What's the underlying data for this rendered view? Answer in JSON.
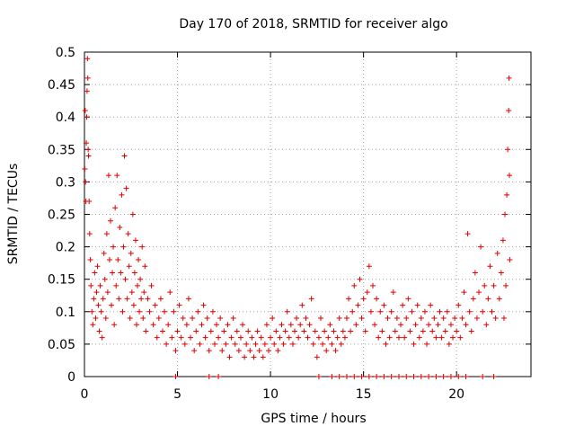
{
  "chart_data": {
    "type": "scatter",
    "title": "Day 170 of 2018, SRMTID for receiver algo",
    "xlabel": "GPS time / hours",
    "ylabel": "SRMTID / TECUs",
    "xlim": [
      0,
      24
    ],
    "ylim": [
      0,
      0.5
    ],
    "xticks": [
      0,
      5,
      10,
      15,
      20
    ],
    "yticks": [
      0,
      0.05,
      0.1,
      0.15,
      0.2,
      0.25,
      0.3,
      0.35,
      0.4,
      0.45,
      0.5
    ],
    "xtick_labels": [
      "0",
      "5",
      "10",
      "15",
      "20"
    ],
    "ytick_labels": [
      "0",
      "0.05",
      "0.1",
      "0.15",
      "0.2",
      "0.25",
      "0.3",
      "0.35",
      "0.4",
      "0.45",
      "0.5"
    ],
    "grid": true,
    "marker": "+",
    "color": "#e00000",
    "series": [
      {
        "name": "SRMTID",
        "points": [
          [
            0.02,
            0.32
          ],
          [
            0.04,
            0.41
          ],
          [
            0.06,
            0.3
          ],
          [
            0.08,
            0.27
          ],
          [
            0.1,
            0.36
          ],
          [
            0.12,
            0.4
          ],
          [
            0.14,
            0.44
          ],
          [
            0.16,
            0.49
          ],
          [
            0.18,
            0.46
          ],
          [
            0.2,
            0.35
          ],
          [
            0.22,
            0.34
          ],
          [
            0.25,
            0.27
          ],
          [
            0.28,
            0.22
          ],
          [
            0.32,
            0.18
          ],
          [
            0.35,
            0.14
          ],
          [
            0.4,
            0.1
          ],
          [
            0.45,
            0.08
          ],
          [
            0.5,
            0.12
          ],
          [
            0.55,
            0.16
          ],
          [
            0.6,
            0.09
          ],
          [
            0.65,
            0.13
          ],
          [
            0.7,
            0.17
          ],
          [
            0.75,
            0.11
          ],
          [
            0.8,
            0.07
          ],
          [
            0.85,
            0.14
          ],
          [
            0.9,
            0.1
          ],
          [
            0.95,
            0.06
          ],
          [
            1.0,
            0.12
          ],
          [
            1.05,
            0.19
          ],
          [
            1.1,
            0.15
          ],
          [
            1.15,
            0.09
          ],
          [
            1.2,
            0.22
          ],
          [
            1.25,
            0.13
          ],
          [
            1.3,
            0.31
          ],
          [
            1.35,
            0.18
          ],
          [
            1.4,
            0.24
          ],
          [
            1.45,
            0.11
          ],
          [
            1.5,
            0.16
          ],
          [
            1.55,
            0.2
          ],
          [
            1.6,
            0.08
          ],
          [
            1.65,
            0.26
          ],
          [
            1.7,
            0.14
          ],
          [
            1.75,
            0.31
          ],
          [
            1.8,
            0.18
          ],
          [
            1.85,
            0.12
          ],
          [
            1.9,
            0.23
          ],
          [
            1.95,
            0.16
          ],
          [
            2.0,
            0.28
          ],
          [
            2.05,
            0.1
          ],
          [
            2.1,
            0.2
          ],
          [
            2.15,
            0.34
          ],
          [
            2.2,
            0.15
          ],
          [
            2.25,
            0.29
          ],
          [
            2.3,
            0.12
          ],
          [
            2.35,
            0.22
          ],
          [
            2.4,
            0.17
          ],
          [
            2.45,
            0.09
          ],
          [
            2.5,
            0.19
          ],
          [
            2.55,
            0.13
          ],
          [
            2.6,
            0.25
          ],
          [
            2.65,
            0.11
          ],
          [
            2.7,
            0.16
          ],
          [
            2.75,
            0.21
          ],
          [
            2.8,
            0.08
          ],
          [
            2.85,
            0.14
          ],
          [
            2.9,
            0.18
          ],
          [
            2.95,
            0.1
          ],
          [
            3.0,
            0.15
          ],
          [
            3.05,
            0.12
          ],
          [
            3.1,
            0.2
          ],
          [
            3.15,
            0.09
          ],
          [
            3.2,
            0.13
          ],
          [
            3.25,
            0.17
          ],
          [
            3.3,
            0.07
          ],
          [
            3.4,
            0.12
          ],
          [
            3.5,
            0.1
          ],
          [
            3.6,
            0.14
          ],
          [
            3.7,
            0.08
          ],
          [
            3.8,
            0.11
          ],
          [
            3.9,
            0.06
          ],
          [
            4.0,
            0.09
          ],
          [
            4.1,
            0.12
          ],
          [
            4.2,
            0.07
          ],
          [
            4.3,
            0.1
          ],
          [
            4.4,
            0.05
          ],
          [
            4.5,
            0.08
          ],
          [
            4.6,
            0.13
          ],
          [
            4.7,
            0.06
          ],
          [
            4.8,
            0.1
          ],
          [
            4.9,
            0.04
          ],
          [
            5.0,
            0.07
          ],
          [
            5.1,
            0.11
          ],
          [
            5.2,
            0.06
          ],
          [
            5.3,
            0.09
          ],
          [
            5.4,
            0.05
          ],
          [
            5.5,
            0.08
          ],
          [
            5.6,
            0.12
          ],
          [
            5.7,
            0.06
          ],
          [
            5.8,
            0.09
          ],
          [
            5.9,
            0.04
          ],
          [
            6.0,
            0.07
          ],
          [
            6.1,
            0.1
          ],
          [
            6.2,
            0.05
          ],
          [
            6.3,
            0.08
          ],
          [
            6.4,
            0.11
          ],
          [
            6.5,
            0.06
          ],
          [
            6.6,
            0.09
          ],
          [
            6.7,
            0.04
          ],
          [
            6.8,
            0.07
          ],
          [
            6.9,
            0.1
          ],
          [
            7.0,
            0.05
          ],
          [
            7.1,
            0.08
          ],
          [
            7.2,
            0.06
          ],
          [
            7.3,
            0.09
          ],
          [
            7.4,
            0.04
          ],
          [
            7.5,
            0.07
          ],
          [
            7.6,
            0.05
          ],
          [
            7.7,
            0.08
          ],
          [
            7.8,
            0.03
          ],
          [
            7.9,
            0.06
          ],
          [
            8.0,
            0.09
          ],
          [
            8.1,
            0.05
          ],
          [
            8.2,
            0.07
          ],
          [
            8.3,
            0.04
          ],
          [
            8.4,
            0.06
          ],
          [
            8.5,
            0.08
          ],
          [
            8.6,
            0.03
          ],
          [
            8.7,
            0.05
          ],
          [
            8.8,
            0.07
          ],
          [
            8.9,
            0.04
          ],
          [
            9.0,
            0.06
          ],
          [
            9.1,
            0.03
          ],
          [
            9.2,
            0.05
          ],
          [
            9.3,
            0.07
          ],
          [
            9.4,
            0.04
          ],
          [
            9.5,
            0.06
          ],
          [
            9.6,
            0.03
          ],
          [
            9.7,
            0.05
          ],
          [
            9.8,
            0.08
          ],
          [
            9.9,
            0.04
          ],
          [
            10.0,
            0.06
          ],
          [
            10.1,
            0.09
          ],
          [
            10.2,
            0.05
          ],
          [
            10.3,
            0.07
          ],
          [
            10.4,
            0.04
          ],
          [
            10.5,
            0.06
          ],
          [
            10.6,
            0.08
          ],
          [
            10.7,
            0.05
          ],
          [
            10.8,
            0.07
          ],
          [
            10.9,
            0.1
          ],
          [
            11.0,
            0.06
          ],
          [
            11.1,
            0.08
          ],
          [
            11.2,
            0.05
          ],
          [
            11.3,
            0.07
          ],
          [
            11.4,
            0.09
          ],
          [
            11.5,
            0.06
          ],
          [
            11.6,
            0.08
          ],
          [
            11.7,
            0.11
          ],
          [
            11.8,
            0.07
          ],
          [
            11.9,
            0.09
          ],
          [
            12.0,
            0.06
          ],
          [
            12.1,
            0.08
          ],
          [
            12.2,
            0.12
          ],
          [
            12.3,
            0.05
          ],
          [
            12.4,
            0.07
          ],
          [
            12.5,
            0.03
          ],
          [
            12.6,
            0.06
          ],
          [
            12.7,
            0.09
          ],
          [
            12.8,
            0.05
          ],
          [
            12.9,
            0.07
          ],
          [
            13.0,
            0.04
          ],
          [
            13.1,
            0.06
          ],
          [
            13.2,
            0.08
          ],
          [
            13.3,
            0.05
          ],
          [
            13.4,
            0.07
          ],
          [
            13.5,
            0.04
          ],
          [
            13.6,
            0.06
          ],
          [
            13.7,
            0.09
          ],
          [
            13.8,
            0.05
          ],
          [
            13.9,
            0.07
          ],
          [
            14.0,
            0.06
          ],
          [
            14.1,
            0.09
          ],
          [
            14.2,
            0.12
          ],
          [
            14.3,
            0.07
          ],
          [
            14.4,
            0.1
          ],
          [
            14.5,
            0.14
          ],
          [
            14.6,
            0.08
          ],
          [
            14.7,
            0.11
          ],
          [
            14.8,
            0.15
          ],
          [
            14.9,
            0.09
          ],
          [
            15.0,
            0.12
          ],
          [
            15.1,
            0.07
          ],
          [
            15.2,
            0.13
          ],
          [
            15.3,
            0.17
          ],
          [
            15.4,
            0.1
          ],
          [
            15.5,
            0.14
          ],
          [
            15.6,
            0.08
          ],
          [
            15.7,
            0.12
          ],
          [
            15.8,
            0.06
          ],
          [
            15.9,
            0.1
          ],
          [
            16.0,
            0.07
          ],
          [
            16.1,
            0.11
          ],
          [
            16.2,
            0.05
          ],
          [
            16.3,
            0.09
          ],
          [
            16.4,
            0.06
          ],
          [
            16.5,
            0.1
          ],
          [
            16.6,
            0.13
          ],
          [
            16.7,
            0.07
          ],
          [
            16.8,
            0.09
          ],
          [
            16.9,
            0.06
          ],
          [
            17.0,
            0.08
          ],
          [
            17.1,
            0.11
          ],
          [
            17.2,
            0.06
          ],
          [
            17.3,
            0.09
          ],
          [
            17.4,
            0.12
          ],
          [
            17.5,
            0.07
          ],
          [
            17.6,
            0.1
          ],
          [
            17.7,
            0.05
          ],
          [
            17.8,
            0.08
          ],
          [
            17.9,
            0.11
          ],
          [
            18.0,
            0.06
          ],
          [
            18.1,
            0.09
          ],
          [
            18.2,
            0.07
          ],
          [
            18.3,
            0.1
          ],
          [
            18.4,
            0.05
          ],
          [
            18.5,
            0.08
          ],
          [
            18.6,
            0.11
          ],
          [
            18.7,
            0.07
          ],
          [
            18.8,
            0.09
          ],
          [
            18.9,
            0.06
          ],
          [
            19.0,
            0.08
          ],
          [
            19.1,
            0.1
          ],
          [
            19.2,
            0.06
          ],
          [
            19.3,
            0.09
          ],
          [
            19.4,
            0.07
          ],
          [
            19.5,
            0.1
          ],
          [
            19.6,
            0.05
          ],
          [
            19.7,
            0.08
          ],
          [
            19.8,
            0.06
          ],
          [
            19.9,
            0.09
          ],
          [
            20.0,
            0.07
          ],
          [
            20.1,
            0.11
          ],
          [
            20.2,
            0.06
          ],
          [
            20.3,
            0.09
          ],
          [
            20.4,
            0.13
          ],
          [
            20.5,
            0.08
          ],
          [
            20.6,
            0.22
          ],
          [
            20.7,
            0.1
          ],
          [
            20.8,
            0.07
          ],
          [
            20.9,
            0.12
          ],
          [
            21.0,
            0.16
          ],
          [
            21.1,
            0.09
          ],
          [
            21.2,
            0.13
          ],
          [
            21.3,
            0.2
          ],
          [
            21.4,
            0.1
          ],
          [
            21.5,
            0.14
          ],
          [
            21.6,
            0.08
          ],
          [
            21.7,
            0.12
          ],
          [
            21.8,
            0.17
          ],
          [
            21.9,
            0.1
          ],
          [
            22.0,
            0.14
          ],
          [
            22.1,
            0.09
          ],
          [
            22.2,
            0.19
          ],
          [
            22.3,
            0.12
          ],
          [
            22.4,
            0.16
          ],
          [
            22.5,
            0.21
          ],
          [
            22.55,
            0.09
          ],
          [
            22.6,
            0.25
          ],
          [
            22.65,
            0.14
          ],
          [
            22.7,
            0.28
          ],
          [
            22.75,
            0.35
          ],
          [
            22.8,
            0.41
          ],
          [
            22.82,
            0.46
          ],
          [
            22.84,
            0.31
          ],
          [
            22.86,
            0.18
          ],
          [
            4.9,
            0.0
          ],
          [
            6.7,
            0.0
          ],
          [
            7.2,
            0.0
          ],
          [
            12.6,
            0.0
          ],
          [
            13.3,
            0.0
          ],
          [
            13.7,
            0.0
          ],
          [
            14.1,
            0.0
          ],
          [
            14.5,
            0.0
          ],
          [
            14.9,
            0.0
          ],
          [
            15.3,
            0.0
          ],
          [
            15.7,
            0.0
          ],
          [
            16.1,
            0.0
          ],
          [
            16.5,
            0.0
          ],
          [
            16.9,
            0.0
          ],
          [
            17.3,
            0.0
          ],
          [
            17.7,
            0.0
          ],
          [
            18.1,
            0.0
          ],
          [
            18.5,
            0.0
          ],
          [
            18.9,
            0.0
          ],
          [
            19.3,
            0.0
          ],
          [
            19.7,
            0.0
          ],
          [
            20.1,
            0.0
          ],
          [
            20.5,
            0.0
          ],
          [
            21.4,
            0.0
          ],
          [
            22.0,
            0.0
          ]
        ]
      }
    ]
  }
}
